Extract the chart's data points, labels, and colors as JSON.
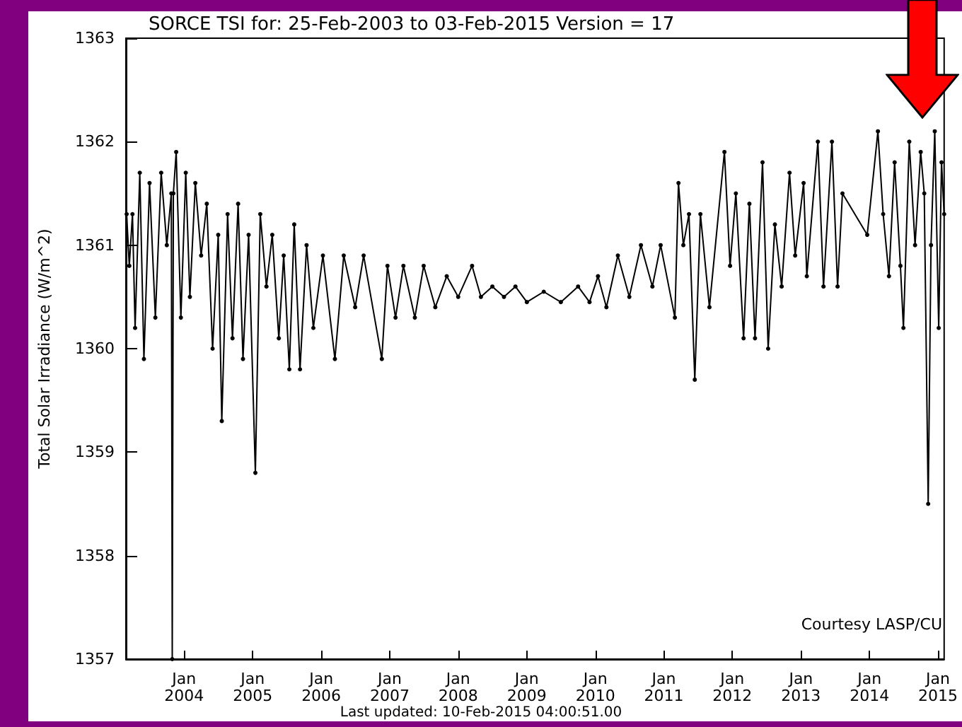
{
  "chart_data": {
    "type": "line",
    "title": "SORCE TSI for: 25-Feb-2003 to 03-Feb-2015 Version = 17",
    "ylabel": "Total Solar Irradiance (W/m^2)",
    "annotations": [
      "Courtesy LASP/CU",
      "Last updated: 10-Feb-2015 04:00:51.00"
    ],
    "x": [
      "2003-03-01",
      "2003-03-15",
      "2003-04-01",
      "2003-04-15",
      "2003-05-10",
      "2003-06-01",
      "2003-07-01",
      "2003-08-01",
      "2003-09-01",
      "2003-10-01",
      "2003-10-25",
      "2003-10-30",
      "2003-11-05",
      "2003-11-20",
      "2003-12-15",
      "2004-01-10",
      "2004-02-01",
      "2004-03-01",
      "2004-04-01",
      "2004-05-01",
      "2004-06-01",
      "2004-07-01",
      "2004-07-20",
      "2004-08-20",
      "2004-09-15",
      "2004-10-15",
      "2004-11-10",
      "2004-12-10",
      "2005-01-15",
      "2005-02-10",
      "2005-03-15",
      "2005-04-15",
      "2005-05-20",
      "2005-06-15",
      "2005-07-15",
      "2005-08-10",
      "2005-09-10",
      "2005-10-15",
      "2005-11-20",
      "2006-01-10",
      "2006-03-15",
      "2006-05-01",
      "2006-07-01",
      "2006-08-15",
      "2006-11-20",
      "2006-12-20",
      "2007-02-01",
      "2007-03-15",
      "2007-05-15",
      "2007-07-01",
      "2007-09-01",
      "2007-11-01",
      "2008-01-01",
      "2008-03-15",
      "2008-05-01",
      "2008-07-01",
      "2008-09-01",
      "2008-11-01",
      "2009-01-01",
      "2009-04-01",
      "2009-07-01",
      "2009-10-01",
      "2009-12-01",
      "2010-01-15",
      "2010-03-01",
      "2010-05-01",
      "2010-07-01",
      "2010-09-01",
      "2010-11-01",
      "2010-12-15",
      "2011-03-01",
      "2011-03-20",
      "2011-04-15",
      "2011-05-15",
      "2011-06-15",
      "2011-07-15",
      "2011-09-01",
      "2011-11-20",
      "2011-12-20",
      "2012-01-20",
      "2012-03-01",
      "2012-04-01",
      "2012-05-01",
      "2012-06-10",
      "2012-07-10",
      "2012-08-15",
      "2012-09-20",
      "2012-11-01",
      "2012-12-01",
      "2013-01-15",
      "2013-02-01",
      "2013-04-01",
      "2013-05-01",
      "2013-06-15",
      "2013-07-15",
      "2013-08-10",
      "2013-12-20",
      "2014-02-15",
      "2014-03-15",
      "2014-04-15",
      "2014-05-15",
      "2014-06-15",
      "2014-07-01",
      "2014-08-01",
      "2014-09-01",
      "2014-10-01",
      "2014-10-20",
      "2014-11-10",
      "2014-11-25",
      "2014-12-15",
      "2015-01-05",
      "2015-01-20",
      "2015-02-03"
    ],
    "series": [
      {
        "color": "#000000",
        "values": [
          1361.3,
          1360.8,
          1361.3,
          1360.2,
          1361.7,
          1359.9,
          1361.6,
          1360.3,
          1361.7,
          1361.0,
          1361.5,
          1357.0,
          1361.5,
          1361.9,
          1360.3,
          1361.7,
          1360.5,
          1361.6,
          1360.9,
          1361.4,
          1360.0,
          1361.1,
          1359.3,
          1361.3,
          1360.1,
          1361.4,
          1359.9,
          1361.1,
          1358.8,
          1361.3,
          1360.6,
          1361.1,
          1360.1,
          1360.9,
          1359.8,
          1361.2,
          1359.8,
          1361.0,
          1360.2,
          1360.9,
          1359.9,
          1360.9,
          1360.4,
          1360.9,
          1359.9,
          1360.8,
          1360.3,
          1360.8,
          1360.3,
          1360.8,
          1360.4,
          1360.7,
          1360.5,
          1360.8,
          1360.5,
          1360.6,
          1360.5,
          1360.6,
          1360.45,
          1360.55,
          1360.45,
          1360.6,
          1360.45,
          1360.7,
          1360.4,
          1360.9,
          1360.5,
          1361.0,
          1360.6,
          1361.0,
          1360.3,
          1361.6,
          1361.0,
          1361.3,
          1359.7,
          1361.3,
          1360.4,
          1361.9,
          1360.8,
          1361.5,
          1360.1,
          1361.4,
          1360.1,
          1361.8,
          1360.0,
          1361.2,
          1360.6,
          1361.7,
          1360.9,
          1361.6,
          1360.7,
          1362.0,
          1360.6,
          1362.0,
          1360.6,
          1361.5,
          1361.1,
          1362.1,
          1361.3,
          1360.7,
          1361.8,
          1360.8,
          1360.2,
          1362.0,
          1361.0,
          1361.9,
          1361.5,
          1358.5,
          1361.0,
          1362.1,
          1360.2,
          1361.8,
          1361.3
        ]
      }
    ],
    "xlim": [
      "2003-02-25",
      "2015-02-03"
    ],
    "xticks": [
      {
        "value": "2004-01-01",
        "label": "Jan\n2004"
      },
      {
        "value": "2005-01-01",
        "label": "Jan\n2005"
      },
      {
        "value": "2006-01-01",
        "label": "Jan\n2006"
      },
      {
        "value": "2007-01-01",
        "label": "Jan\n2007"
      },
      {
        "value": "2008-01-01",
        "label": "Jan\n2008"
      },
      {
        "value": "2009-01-01",
        "label": "Jan\n2009"
      },
      {
        "value": "2010-01-01",
        "label": "Jan\n2010"
      },
      {
        "value": "2011-01-01",
        "label": "Jan\n2011"
      },
      {
        "value": "2012-01-01",
        "label": "Jan\n2012"
      },
      {
        "value": "2013-01-01",
        "label": "Jan\n2013"
      },
      {
        "value": "2014-01-01",
        "label": "Jan\n2014"
      },
      {
        "value": "2015-01-01",
        "label": "Jan\n2015"
      }
    ],
    "ylim": [
      1357,
      1363
    ],
    "yticks": [
      1357,
      1358,
      1359,
      1360,
      1361,
      1362,
      1363
    ],
    "grid": false,
    "marker": "circle",
    "line_style": "solid"
  }
}
